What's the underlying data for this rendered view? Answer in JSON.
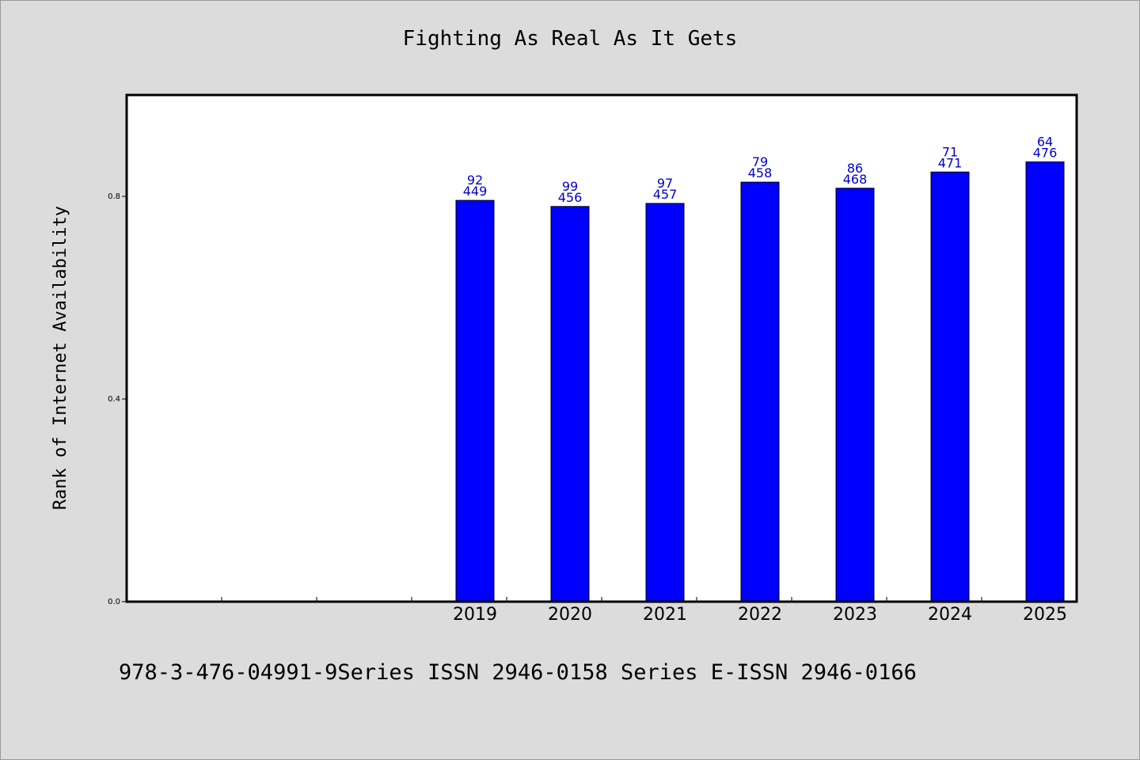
{
  "chart_data": {
    "type": "bar",
    "title": "Fighting As Real As It Gets",
    "ylabel": "Rank of Internet Availability",
    "xlabel": "",
    "categories": [
      "",
      "",
      "",
      "2019",
      "2020",
      "2021",
      "2022",
      "2023",
      "2024",
      "2025"
    ],
    "values": [
      null,
      null,
      null,
      0.792,
      0.78,
      0.786,
      0.828,
      0.816,
      0.848,
      0.868
    ],
    "bar_labels_top": [
      "",
      "",
      "",
      "92",
      "99",
      "97",
      "79",
      "86",
      "71",
      "64"
    ],
    "bar_labels_bottom": [
      "",
      "",
      "",
      "449",
      "456",
      "457",
      "458",
      "468",
      "471",
      "476"
    ],
    "yticks": [
      0.0,
      0.4,
      0.8
    ],
    "ytick_labels": [
      "0.0",
      "0.4",
      "0.8"
    ],
    "ylim": [
      0,
      1.0
    ],
    "grid": false,
    "bar_color": "#0000ff",
    "label_color": "#0000cc"
  },
  "footer": "978-3-476-04991-9Series ISSN 2946-0158 Series E-ISSN 2946-0166"
}
